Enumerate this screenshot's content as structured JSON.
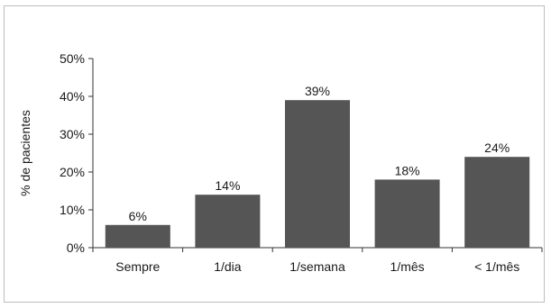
{
  "chart_data": {
    "type": "bar",
    "categories": [
      "Sempre",
      "1/dia",
      "1/semana",
      "1/mês",
      "< 1/mês"
    ],
    "values": [
      6,
      14,
      39,
      18,
      24
    ],
    "data_labels": [
      "6%",
      "14%",
      "39%",
      "18%",
      "24%"
    ],
    "title": "",
    "xlabel": "",
    "ylabel": "% de pacientes",
    "ylim": [
      0,
      50
    ],
    "yticks": [
      0,
      10,
      20,
      30,
      40,
      50
    ],
    "ytick_labels": [
      "0%",
      "10%",
      "20%",
      "30%",
      "40%",
      "50%"
    ],
    "grid": false,
    "bar_color": "#555555"
  }
}
